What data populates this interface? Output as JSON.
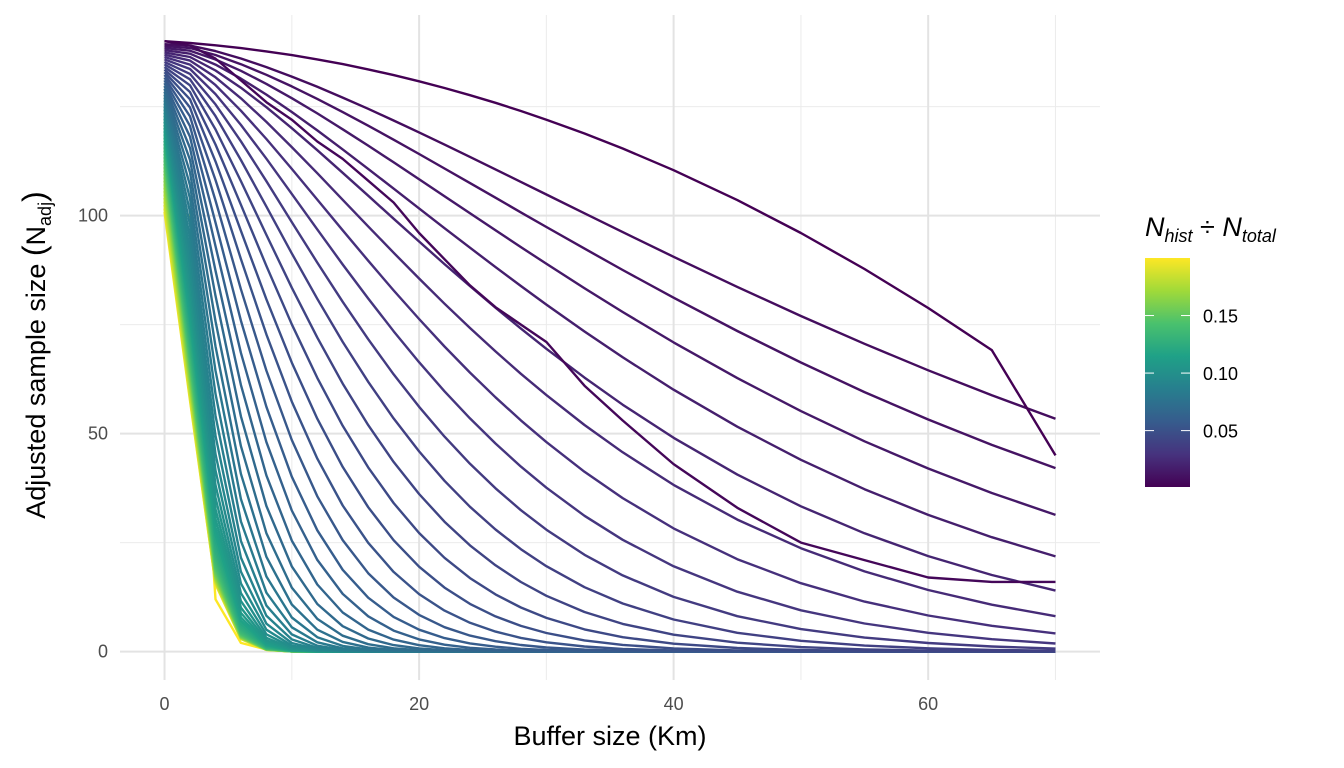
{
  "chart_data": {
    "type": "line",
    "title": "",
    "xlabel": "Buffer size (Km)",
    "ylabel": {
      "main": "Adjusted sample size ",
      "paren_open": "(",
      "sym": "N",
      "sub": "adj",
      "paren_close": ")"
    },
    "xlim": [
      -3.5,
      73.5
    ],
    "ylim": [
      -6.5,
      146
    ],
    "x_ticks": [
      0,
      20,
      40,
      60
    ],
    "x_tick_labels": [
      "0",
      "20",
      "40",
      "60"
    ],
    "y_ticks": [
      0,
      50,
      100
    ],
    "y_tick_labels": [
      "0",
      "50",
      "100"
    ],
    "grid": true,
    "x": [
      0,
      2,
      4,
      6,
      8,
      10,
      12,
      14,
      16,
      18,
      20,
      22,
      24,
      26,
      28,
      30,
      33,
      36,
      40,
      45,
      50,
      55,
      60,
      65,
      70
    ],
    "series_count": 60,
    "series_note": "families of lines: each line starts between 100 and 140, ratio Nhist/Ntotal from 0.003 to 0.2",
    "representative_series": [
      {
        "ratio": 0.003,
        "values": [
          140,
          139.5,
          138.5,
          137,
          135.5,
          134,
          132.5,
          131,
          129,
          127,
          125,
          123,
          120.5,
          117.5,
          115,
          113,
          106,
          100,
          95,
          87,
          76,
          68,
          60,
          52,
          45
        ]
      },
      {
        "ratio": 0.006,
        "values": [
          140,
          139,
          136,
          131,
          126,
          122,
          117,
          113,
          108,
          103,
          96,
          90,
          84,
          79,
          75,
          71,
          61,
          53,
          43,
          33,
          25,
          21,
          17,
          16,
          16
        ]
      },
      {
        "ratio": 0.2,
        "values": [
          100,
          100,
          12,
          2,
          0.5,
          0.3,
          0.2,
          0.2,
          0.1,
          0.1,
          0.1,
          0.1,
          0.1,
          0.1,
          0.1,
          0.1,
          0.1,
          0.1,
          0.1,
          0.1,
          0.1,
          0.1,
          0.1,
          0.1,
          0.1
        ]
      }
    ],
    "colorbar": {
      "title_parts": {
        "a": "N",
        "a_sub": "hist",
        "op": " ÷ ",
        "b": "N",
        "b_sub": "total"
      },
      "range": [
        0.001,
        0.2
      ],
      "ticks": [
        0.05,
        0.1,
        0.15
      ],
      "tick_labels": [
        "0.05",
        "0.10",
        "0.15"
      ],
      "colors": [
        "#440154",
        "#46337e",
        "#365c8d",
        "#277f8e",
        "#1fa187",
        "#4ac16d",
        "#a0da39",
        "#fde725"
      ]
    }
  }
}
